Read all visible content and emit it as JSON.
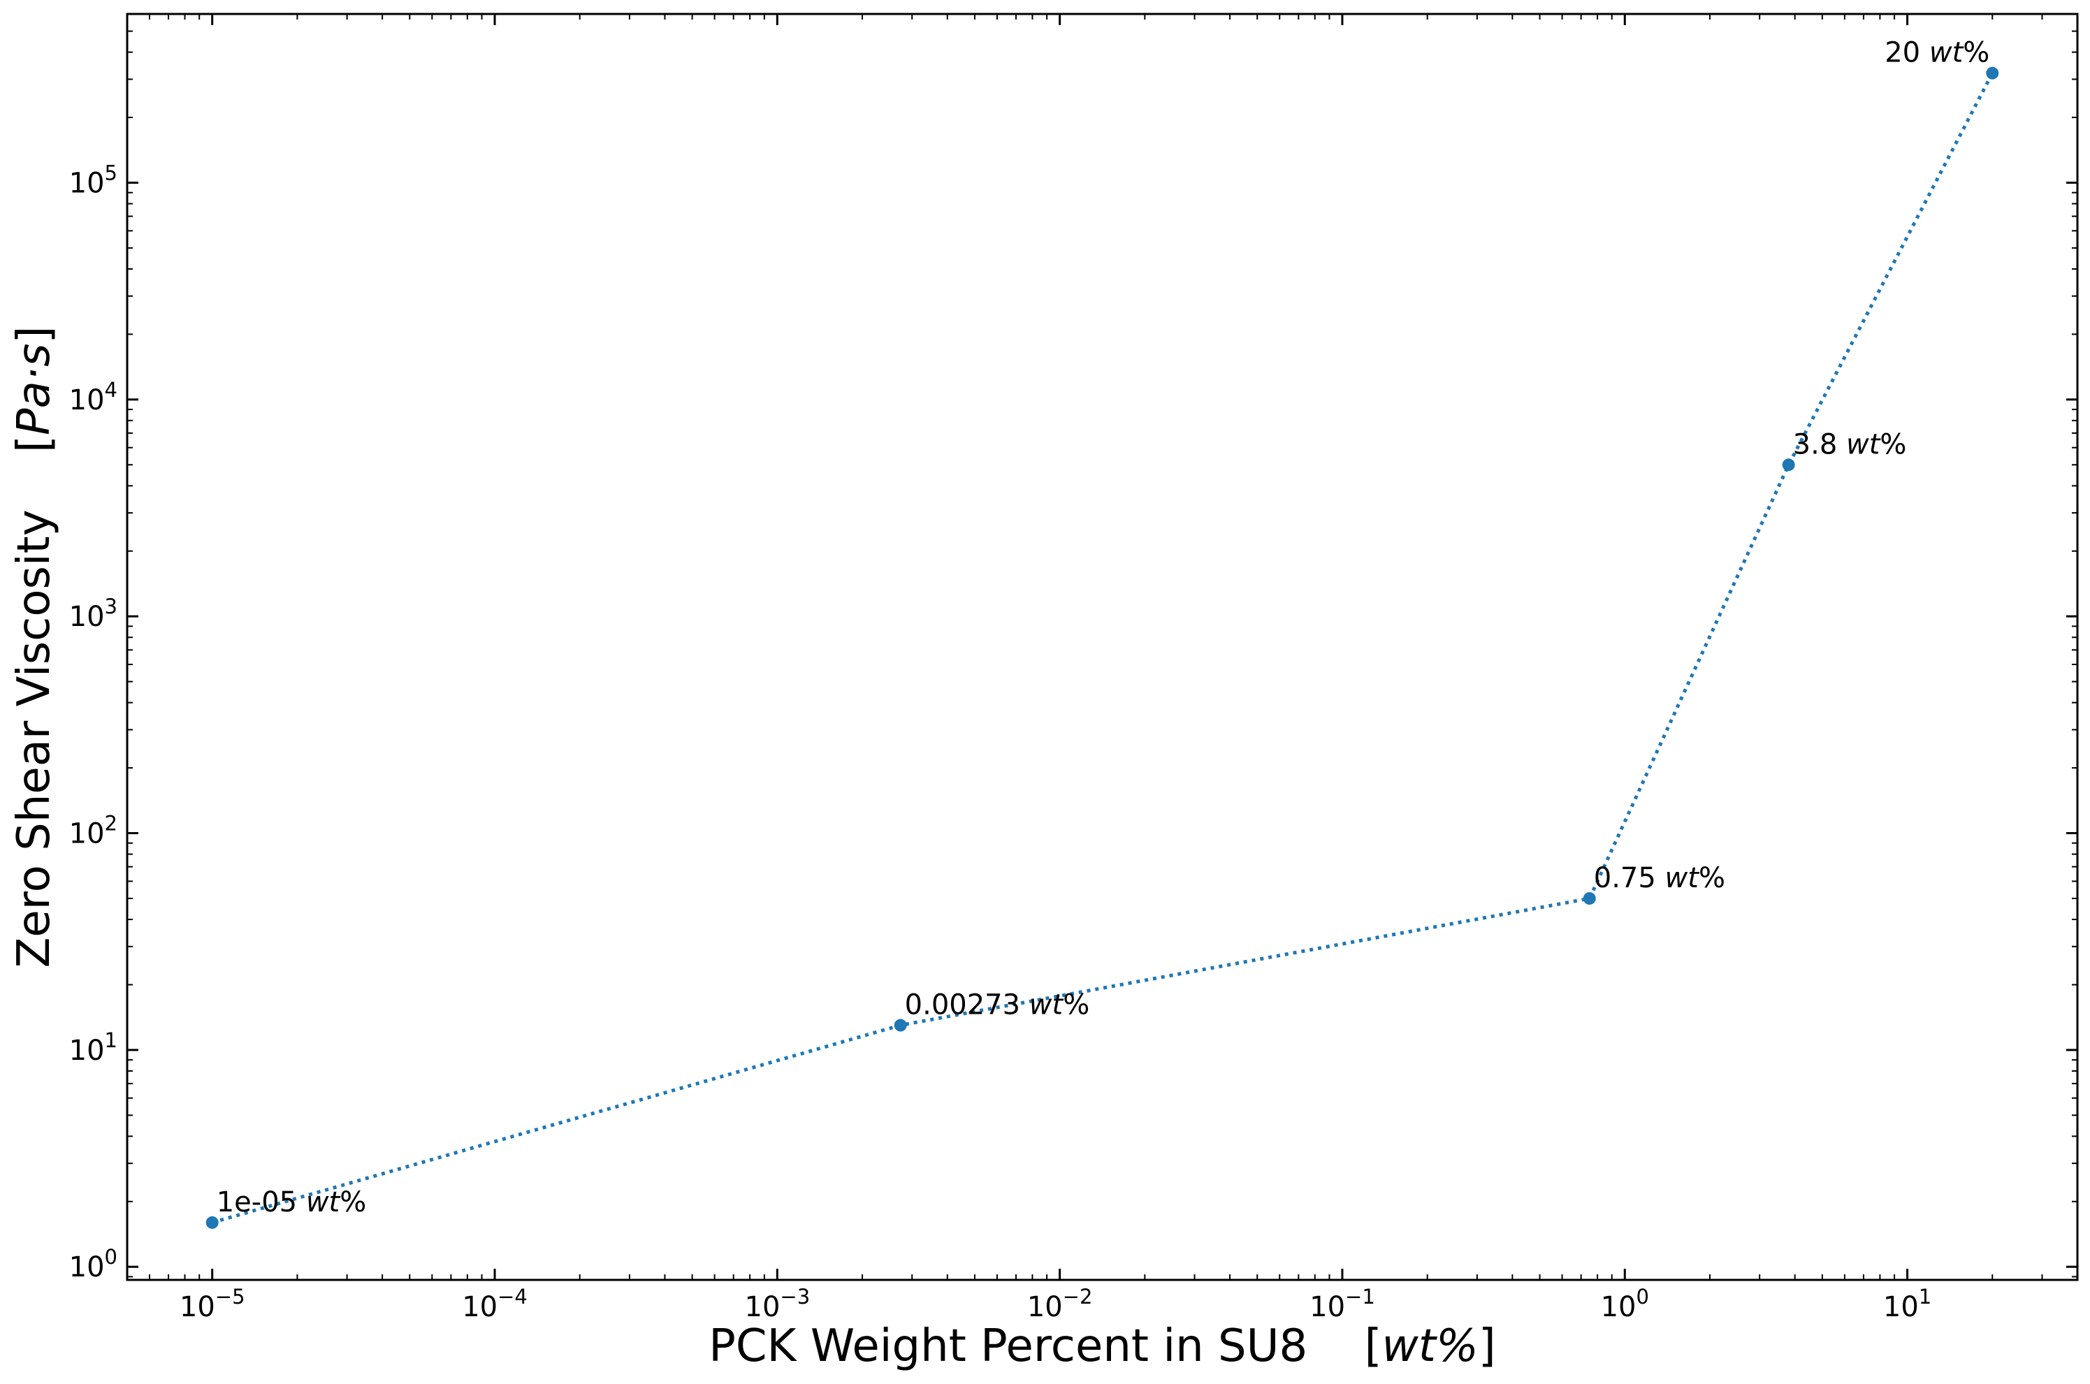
{
  "chart_data": {
    "type": "line",
    "title": "",
    "xlabel": "PCK Weight Percent in SU8",
    "xlabel_unit": "wt%",
    "ylabel": "Zero Shear Viscosity",
    "ylabel_unit": "Pa·s",
    "x_scale": "log",
    "y_scale": "log",
    "xlim": [
      5e-06,
      40
    ],
    "ylim": [
      0.87,
      600000
    ],
    "grid": false,
    "legend": "none",
    "x_ticks": [
      {
        "value": 1e-05,
        "base": "10",
        "exp": "−5"
      },
      {
        "value": 0.0001,
        "base": "10",
        "exp": "−4"
      },
      {
        "value": 0.001,
        "base": "10",
        "exp": "−3"
      },
      {
        "value": 0.01,
        "base": "10",
        "exp": "−2"
      },
      {
        "value": 0.1,
        "base": "10",
        "exp": "−1"
      },
      {
        "value": 1,
        "base": "10",
        "exp": "0"
      },
      {
        "value": 10,
        "base": "10",
        "exp": "1"
      }
    ],
    "y_ticks": [
      {
        "value": 1,
        "base": "10",
        "exp": "0"
      },
      {
        "value": 10,
        "base": "10",
        "exp": "1"
      },
      {
        "value": 100,
        "base": "10",
        "exp": "2"
      },
      {
        "value": 1000,
        "base": "10",
        "exp": "3"
      },
      {
        "value": 10000,
        "base": "10",
        "exp": "4"
      },
      {
        "value": 100000,
        "base": "10",
        "exp": "5"
      }
    ],
    "series": [
      {
        "color": "#1f77b4",
        "line_style": "dotted",
        "marker": "circle",
        "points": [
          {
            "x": 1e-05,
            "y": 1.6,
            "label_value": "1e-05",
            "label_unit": "wt",
            "label_suffix": "%"
          },
          {
            "x": 0.00273,
            "y": 13,
            "label_value": "0.00273",
            "label_unit": "wt",
            "label_suffix": "%"
          },
          {
            "x": 0.75,
            "y": 50,
            "label_value": "0.75",
            "label_unit": "wt",
            "label_suffix": "%"
          },
          {
            "x": 3.8,
            "y": 5000,
            "label_value": "3.8",
            "label_unit": "wt",
            "label_suffix": "%"
          },
          {
            "x": 20,
            "y": 320000,
            "label_value": "20",
            "label_unit": "wt",
            "label_suffix": "%"
          }
        ]
      }
    ]
  }
}
